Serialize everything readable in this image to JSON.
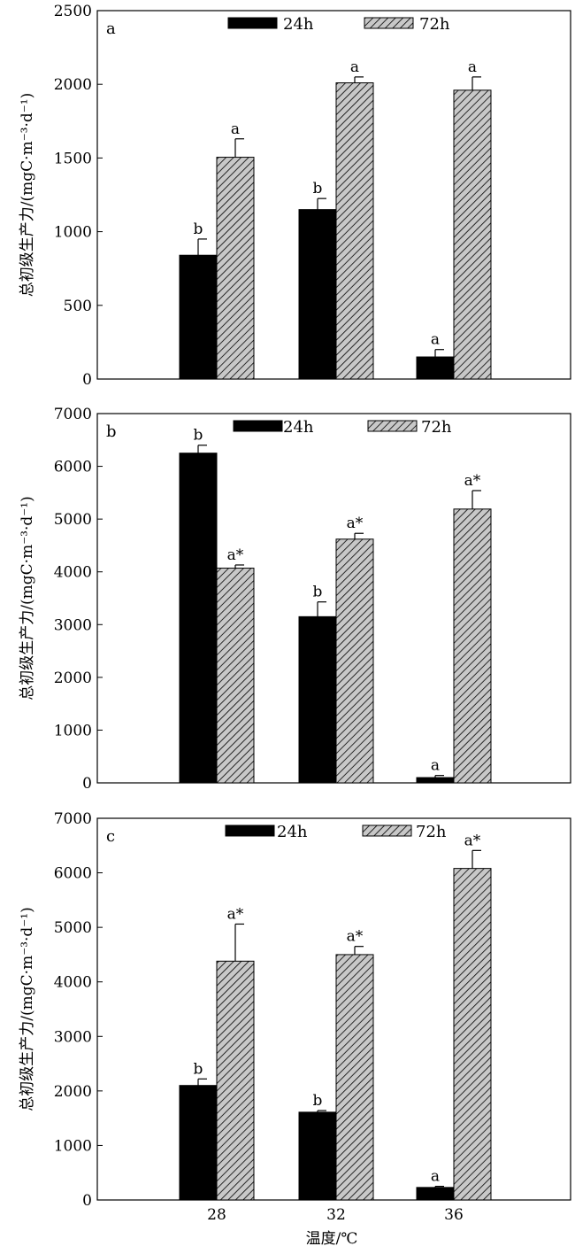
{
  "figure": {
    "xlabel": "温度/℃",
    "ylabel": "总初级生产力/(mgC·m⁻³·d⁻¹)"
  },
  "chart_data": [
    {
      "type": "bar",
      "panel": "a",
      "categories": [
        "28",
        "32",
        "36"
      ],
      "series": [
        {
          "name": "24h",
          "values": [
            840,
            1150,
            150
          ],
          "errors": [
            110,
            75,
            50
          ],
          "labels": [
            "b",
            "b",
            "a"
          ],
          "pattern": "solid",
          "color": "#000000"
        },
        {
          "name": "72h",
          "values": [
            1505,
            2010,
            1960
          ],
          "errors": [
            125,
            40,
            90
          ],
          "labels": [
            "a",
            "a",
            "a"
          ],
          "pattern": "hatched",
          "color": "#c0c0c0"
        }
      ],
      "ylim": [
        0,
        2500
      ],
      "yticks": [
        "0",
        "500",
        "1000",
        "1500",
        "2000",
        "2500"
      ],
      "legend": "top-center",
      "grid": false
    },
    {
      "type": "bar",
      "panel": "b",
      "categories": [
        "28",
        "32",
        "36"
      ],
      "series": [
        {
          "name": "24h",
          "values": [
            6250,
            3150,
            100
          ],
          "errors": [
            150,
            280,
            40
          ],
          "labels": [
            "b",
            "b",
            "a"
          ],
          "pattern": "solid",
          "color": "#000000"
        },
        {
          "name": "72h",
          "values": [
            4070,
            4620,
            5190
          ],
          "errors": [
            60,
            110,
            350
          ],
          "labels": [
            "a*",
            "a*",
            "a*"
          ],
          "pattern": "hatched",
          "color": "#c0c0c0"
        }
      ],
      "ylim": [
        0,
        7000
      ],
      "yticks": [
        "0",
        "1000",
        "2000",
        "3000",
        "4000",
        "5000",
        "6000",
        "7000"
      ],
      "legend": "top-center",
      "grid": false
    },
    {
      "type": "bar",
      "panel": "c",
      "categories": [
        "28",
        "32",
        "36"
      ],
      "series": [
        {
          "name": "24h",
          "values": [
            2100,
            1610,
            230
          ],
          "errors": [
            120,
            30,
            20
          ],
          "labels": [
            "b",
            "b",
            "a"
          ],
          "pattern": "solid",
          "color": "#000000"
        },
        {
          "name": "72h",
          "values": [
            4380,
            4500,
            6080
          ],
          "errors": [
            680,
            150,
            330
          ],
          "labels": [
            "a*",
            "a*",
            "a*"
          ],
          "pattern": "hatched",
          "color": "#c0c0c0"
        }
      ],
      "ylim": [
        0,
        7000
      ],
      "yticks": [
        "0",
        "1000",
        "2000",
        "3000",
        "4000",
        "5000",
        "6000",
        "7000"
      ],
      "legend": "top-center",
      "grid": false
    }
  ]
}
